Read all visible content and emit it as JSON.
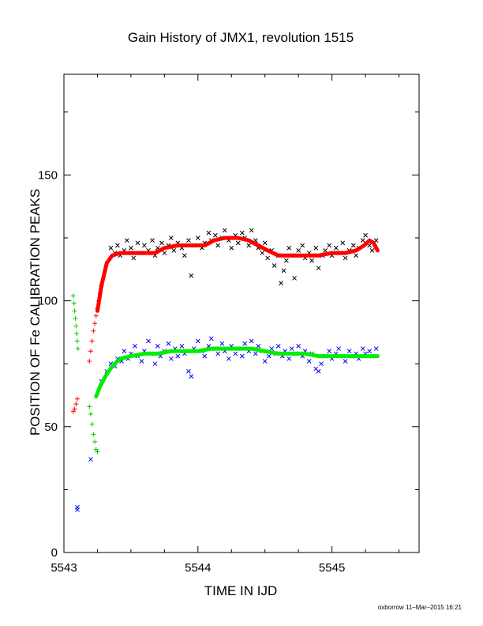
{
  "chart_data": {
    "type": "scatter",
    "title": "Gain History of JMX1, revolution 1515",
    "xlabel": "TIME IN IJD",
    "ylabel": "POSITION OF Fe CALIBRATION PEAKS",
    "xlim": [
      5543,
      5545.65
    ],
    "ylim": [
      0,
      190
    ],
    "x_ticks": [
      5543,
      5544,
      5545
    ],
    "y_ticks": [
      0,
      50,
      100,
      150
    ],
    "grid": false,
    "legend": "none",
    "footer": "oxborrow 11–Mar–2015 16:21",
    "series": [
      {
        "marker": "x",
        "color": "#000000",
        "points": [
          [
            5543.35,
            121
          ],
          [
            5543.38,
            119
          ],
          [
            5543.4,
            122
          ],
          [
            5543.42,
            118
          ],
          [
            5543.45,
            120
          ],
          [
            5543.47,
            124
          ],
          [
            5543.5,
            121
          ],
          [
            5543.52,
            117
          ],
          [
            5543.55,
            123
          ],
          [
            5543.58,
            119
          ],
          [
            5543.6,
            122
          ],
          [
            5543.63,
            120
          ],
          [
            5543.66,
            124
          ],
          [
            5543.68,
            118
          ],
          [
            5543.7,
            121
          ],
          [
            5543.73,
            123
          ],
          [
            5543.75,
            119
          ],
          [
            5543.78,
            122
          ],
          [
            5543.8,
            125
          ],
          [
            5543.82,
            120
          ],
          [
            5543.85,
            123
          ],
          [
            5543.88,
            121
          ],
          [
            5543.9,
            118
          ],
          [
            5543.93,
            124
          ],
          [
            5543.95,
            110
          ],
          [
            5543.97,
            122
          ],
          [
            5544.0,
            125
          ],
          [
            5544.03,
            121
          ],
          [
            5544.05,
            123
          ],
          [
            5544.08,
            127
          ],
          [
            5544.1,
            124
          ],
          [
            5544.13,
            126
          ],
          [
            5544.15,
            122
          ],
          [
            5544.18,
            125
          ],
          [
            5544.2,
            128
          ],
          [
            5544.23,
            124
          ],
          [
            5544.25,
            121
          ],
          [
            5544.28,
            126
          ],
          [
            5544.3,
            123
          ],
          [
            5544.33,
            127
          ],
          [
            5544.35,
            125
          ],
          [
            5544.38,
            122
          ],
          [
            5544.4,
            128
          ],
          [
            5544.43,
            124
          ],
          [
            5544.45,
            121
          ],
          [
            5544.48,
            119
          ],
          [
            5544.5,
            123
          ],
          [
            5544.52,
            117
          ],
          [
            5544.55,
            120
          ],
          [
            5544.57,
            114
          ],
          [
            5544.6,
            118
          ],
          [
            5544.62,
            107
          ],
          [
            5544.64,
            112
          ],
          [
            5544.66,
            116
          ],
          [
            5544.68,
            121
          ],
          [
            5544.7,
            118
          ],
          [
            5544.72,
            109
          ],
          [
            5544.75,
            120
          ],
          [
            5544.78,
            122
          ],
          [
            5544.8,
            117
          ],
          [
            5544.83,
            119
          ],
          [
            5544.85,
            116
          ],
          [
            5544.88,
            121
          ],
          [
            5544.9,
            113
          ],
          [
            5544.93,
            118
          ],
          [
            5544.95,
            120
          ],
          [
            5544.98,
            122
          ],
          [
            5545.0,
            118
          ],
          [
            5545.03,
            121
          ],
          [
            5545.06,
            119
          ],
          [
            5545.08,
            123
          ],
          [
            5545.1,
            117
          ],
          [
            5545.13,
            120
          ],
          [
            5545.16,
            122
          ],
          [
            5545.18,
            118
          ],
          [
            5545.2,
            121
          ],
          [
            5545.23,
            124
          ],
          [
            5545.25,
            126
          ],
          [
            5545.28,
            122
          ],
          [
            5545.3,
            120
          ],
          [
            5545.33,
            124
          ]
        ]
      },
      {
        "marker": "x",
        "color": "#0000ff",
        "points": [
          [
            5543.1,
            18
          ],
          [
            5543.1,
            17
          ],
          [
            5543.2,
            37
          ],
          [
            5543.28,
            68
          ],
          [
            5543.32,
            72
          ],
          [
            5543.35,
            75
          ],
          [
            5543.38,
            74
          ],
          [
            5543.4,
            77
          ],
          [
            5543.43,
            76
          ],
          [
            5543.45,
            80
          ],
          [
            5543.48,
            77
          ],
          [
            5543.5,
            79
          ],
          [
            5543.53,
            82
          ],
          [
            5543.55,
            78
          ],
          [
            5543.58,
            76
          ],
          [
            5543.6,
            80
          ],
          [
            5543.63,
            84
          ],
          [
            5543.65,
            79
          ],
          [
            5543.68,
            75
          ],
          [
            5543.7,
            82
          ],
          [
            5543.72,
            78
          ],
          [
            5543.75,
            80
          ],
          [
            5543.78,
            83
          ],
          [
            5543.8,
            77
          ],
          [
            5543.83,
            81
          ],
          [
            5543.85,
            78
          ],
          [
            5543.88,
            82
          ],
          [
            5543.9,
            79
          ],
          [
            5543.93,
            72
          ],
          [
            5543.95,
            70
          ],
          [
            5543.97,
            81
          ],
          [
            5544.0,
            84
          ],
          [
            5544.03,
            80
          ],
          [
            5544.05,
            78
          ],
          [
            5544.08,
            82
          ],
          [
            5544.1,
            85
          ],
          [
            5544.13,
            81
          ],
          [
            5544.15,
            79
          ],
          [
            5544.18,
            83
          ],
          [
            5544.2,
            80
          ],
          [
            5544.23,
            77
          ],
          [
            5544.25,
            82
          ],
          [
            5544.28,
            79
          ],
          [
            5544.3,
            81
          ],
          [
            5544.33,
            78
          ],
          [
            5544.35,
            83
          ],
          [
            5544.38,
            80
          ],
          [
            5544.4,
            84
          ],
          [
            5544.43,
            79
          ],
          [
            5544.45,
            82
          ],
          [
            5544.48,
            80
          ],
          [
            5544.5,
            76
          ],
          [
            5544.53,
            78
          ],
          [
            5544.55,
            81
          ],
          [
            5544.58,
            79
          ],
          [
            5544.6,
            82
          ],
          [
            5544.63,
            78
          ],
          [
            5544.65,
            80
          ],
          [
            5544.68,
            77
          ],
          [
            5544.7,
            81
          ],
          [
            5544.73,
            79
          ],
          [
            5544.75,
            82
          ],
          [
            5544.78,
            78
          ],
          [
            5544.8,
            80
          ],
          [
            5544.83,
            76
          ],
          [
            5544.85,
            79
          ],
          [
            5544.88,
            73
          ],
          [
            5544.9,
            72
          ],
          [
            5544.92,
            75
          ],
          [
            5544.95,
            78
          ],
          [
            5544.98,
            80
          ],
          [
            5545.0,
            77
          ],
          [
            5545.03,
            79
          ],
          [
            5545.05,
            81
          ],
          [
            5545.08,
            78
          ],
          [
            5545.1,
            76
          ],
          [
            5545.13,
            80
          ],
          [
            5545.15,
            78
          ],
          [
            5545.18,
            79
          ],
          [
            5545.2,
            77
          ],
          [
            5545.23,
            81
          ],
          [
            5545.25,
            79
          ],
          [
            5545.28,
            80
          ],
          [
            5545.3,
            78
          ],
          [
            5545.33,
            81
          ]
        ]
      },
      {
        "marker": "+",
        "color": "#ff0000",
        "points": [
          [
            5543.07,
            56
          ],
          [
            5543.08,
            57
          ],
          [
            5543.09,
            59
          ],
          [
            5543.1,
            61
          ],
          [
            5543.19,
            76
          ],
          [
            5543.2,
            80
          ],
          [
            5543.21,
            84
          ],
          [
            5543.22,
            88
          ],
          [
            5543.23,
            91
          ],
          [
            5543.24,
            94
          ],
          [
            5543.25,
            97
          ],
          [
            5543.26,
            100
          ],
          [
            5543.27,
            103
          ],
          [
            5543.28,
            106
          ]
        ]
      },
      {
        "marker": "+",
        "color": "#00cc00",
        "points": [
          [
            5543.07,
            102
          ],
          [
            5543.075,
            99
          ],
          [
            5543.08,
            96
          ],
          [
            5543.085,
            93
          ],
          [
            5543.09,
            90
          ],
          [
            5543.095,
            87
          ],
          [
            5543.1,
            84
          ],
          [
            5543.105,
            81
          ],
          [
            5543.19,
            58
          ],
          [
            5543.2,
            55
          ],
          [
            5543.21,
            51
          ],
          [
            5543.22,
            47
          ],
          [
            5543.23,
            44
          ],
          [
            5543.24,
            41
          ],
          [
            5543.25,
            40
          ]
        ]
      },
      {
        "name": "",
        "marker": "line",
        "color": "#ff0000",
        "width": 5,
        "points": [
          [
            5543.25,
            96
          ],
          [
            5543.28,
            106
          ],
          [
            5543.32,
            115
          ],
          [
            5543.36,
            118
          ],
          [
            5543.42,
            119
          ],
          [
            5543.5,
            119
          ],
          [
            5543.6,
            119
          ],
          [
            5543.68,
            119
          ],
          [
            5543.75,
            121
          ],
          [
            5543.85,
            122
          ],
          [
            5543.95,
            122
          ],
          [
            5544.05,
            122
          ],
          [
            5544.12,
            124
          ],
          [
            5544.2,
            125
          ],
          [
            5544.3,
            125
          ],
          [
            5544.38,
            124
          ],
          [
            5544.45,
            122
          ],
          [
            5544.52,
            120
          ],
          [
            5544.6,
            118
          ],
          [
            5544.7,
            118
          ],
          [
            5544.8,
            118
          ],
          [
            5544.9,
            118
          ],
          [
            5545.0,
            119
          ],
          [
            5545.1,
            119
          ],
          [
            5545.18,
            120
          ],
          [
            5545.24,
            122
          ],
          [
            5545.28,
            124
          ],
          [
            5545.31,
            123
          ],
          [
            5545.34,
            120
          ]
        ]
      },
      {
        "name": "",
        "marker": "line",
        "color": "#00ee00",
        "width": 5,
        "points": [
          [
            5543.24,
            62
          ],
          [
            5543.27,
            66
          ],
          [
            5543.31,
            70
          ],
          [
            5543.36,
            74
          ],
          [
            5543.42,
            77
          ],
          [
            5543.5,
            78
          ],
          [
            5543.6,
            79
          ],
          [
            5543.7,
            79
          ],
          [
            5543.8,
            80
          ],
          [
            5543.9,
            80
          ],
          [
            5544.0,
            80
          ],
          [
            5544.1,
            81
          ],
          [
            5544.2,
            81
          ],
          [
            5544.3,
            81
          ],
          [
            5544.4,
            81
          ],
          [
            5544.5,
            80
          ],
          [
            5544.6,
            79
          ],
          [
            5544.7,
            79
          ],
          [
            5544.8,
            79
          ],
          [
            5544.9,
            78
          ],
          [
            5545.0,
            78
          ],
          [
            5545.1,
            78
          ],
          [
            5545.2,
            78
          ],
          [
            5545.34,
            78
          ]
        ]
      }
    ]
  }
}
